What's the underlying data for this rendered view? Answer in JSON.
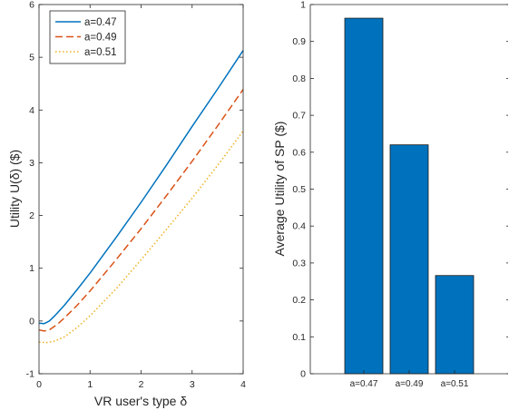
{
  "chart_data": [
    {
      "type": "line",
      "xlabel": "VR user's type δ",
      "ylabel": "Utility U(δ) ($)",
      "xlim": [
        0,
        4
      ],
      "ylim": [
        -1,
        6
      ],
      "xticks": [
        "0",
        "1",
        "2",
        "3",
        "4"
      ],
      "yticks": [
        "-1",
        "0",
        "1",
        "2",
        "3",
        "4",
        "5",
        "6"
      ],
      "grid": false,
      "legend_position": "top-left",
      "series": [
        {
          "name": "a=0.47",
          "color": "#0072BD",
          "style": "solid",
          "points": [
            [
              0,
              -0.04
            ],
            [
              0.1,
              -0.05
            ],
            [
              0.2,
              0.0
            ],
            [
              0.3,
              0.09
            ],
            [
              0.5,
              0.3
            ],
            [
              0.75,
              0.6
            ],
            [
              1.0,
              0.91
            ],
            [
              1.5,
              1.57
            ],
            [
              2.0,
              2.25
            ],
            [
              2.5,
              2.96
            ],
            [
              3.0,
              3.69
            ],
            [
              3.5,
              4.4
            ],
            [
              4.0,
              5.13
            ]
          ]
        },
        {
          "name": "a=0.49",
          "color": "#D95319",
          "style": "dashed",
          "points": [
            [
              0,
              -0.17
            ],
            [
              0.1,
              -0.19
            ],
            [
              0.2,
              -0.17
            ],
            [
              0.35,
              -0.07
            ],
            [
              0.5,
              0.06
            ],
            [
              0.75,
              0.3
            ],
            [
              1.0,
              0.57
            ],
            [
              1.5,
              1.15
            ],
            [
              2.0,
              1.75
            ],
            [
              2.5,
              2.38
            ],
            [
              3.0,
              3.03
            ],
            [
              3.5,
              3.7
            ],
            [
              4.0,
              4.39
            ]
          ]
        },
        {
          "name": "a=0.51",
          "color": "#EDB120",
          "style": "dotted",
          "points": [
            [
              0,
              -0.4
            ],
            [
              0.15,
              -0.41
            ],
            [
              0.3,
              -0.38
            ],
            [
              0.5,
              -0.3
            ],
            [
              0.75,
              -0.12
            ],
            [
              1.0,
              0.1
            ],
            [
              1.5,
              0.6
            ],
            [
              2.0,
              1.16
            ],
            [
              2.5,
              1.74
            ],
            [
              3.0,
              2.33
            ],
            [
              3.5,
              2.95
            ],
            [
              4.0,
              3.6
            ]
          ]
        }
      ]
    },
    {
      "type": "bar",
      "ylabel": "Average Utility of SP ($)",
      "categories": [
        "a=0.47",
        "a=0.49",
        "a=0.51"
      ],
      "values": [
        0.963,
        0.62,
        0.266
      ],
      "ylim": [
        0,
        1
      ],
      "yticks": [
        "0",
        "0.1",
        "0.2",
        "0.3",
        "0.4",
        "0.5",
        "0.6",
        "0.7",
        "0.8",
        "0.9",
        "1"
      ],
      "bar_color": "#0072BD",
      "grid": false
    }
  ]
}
